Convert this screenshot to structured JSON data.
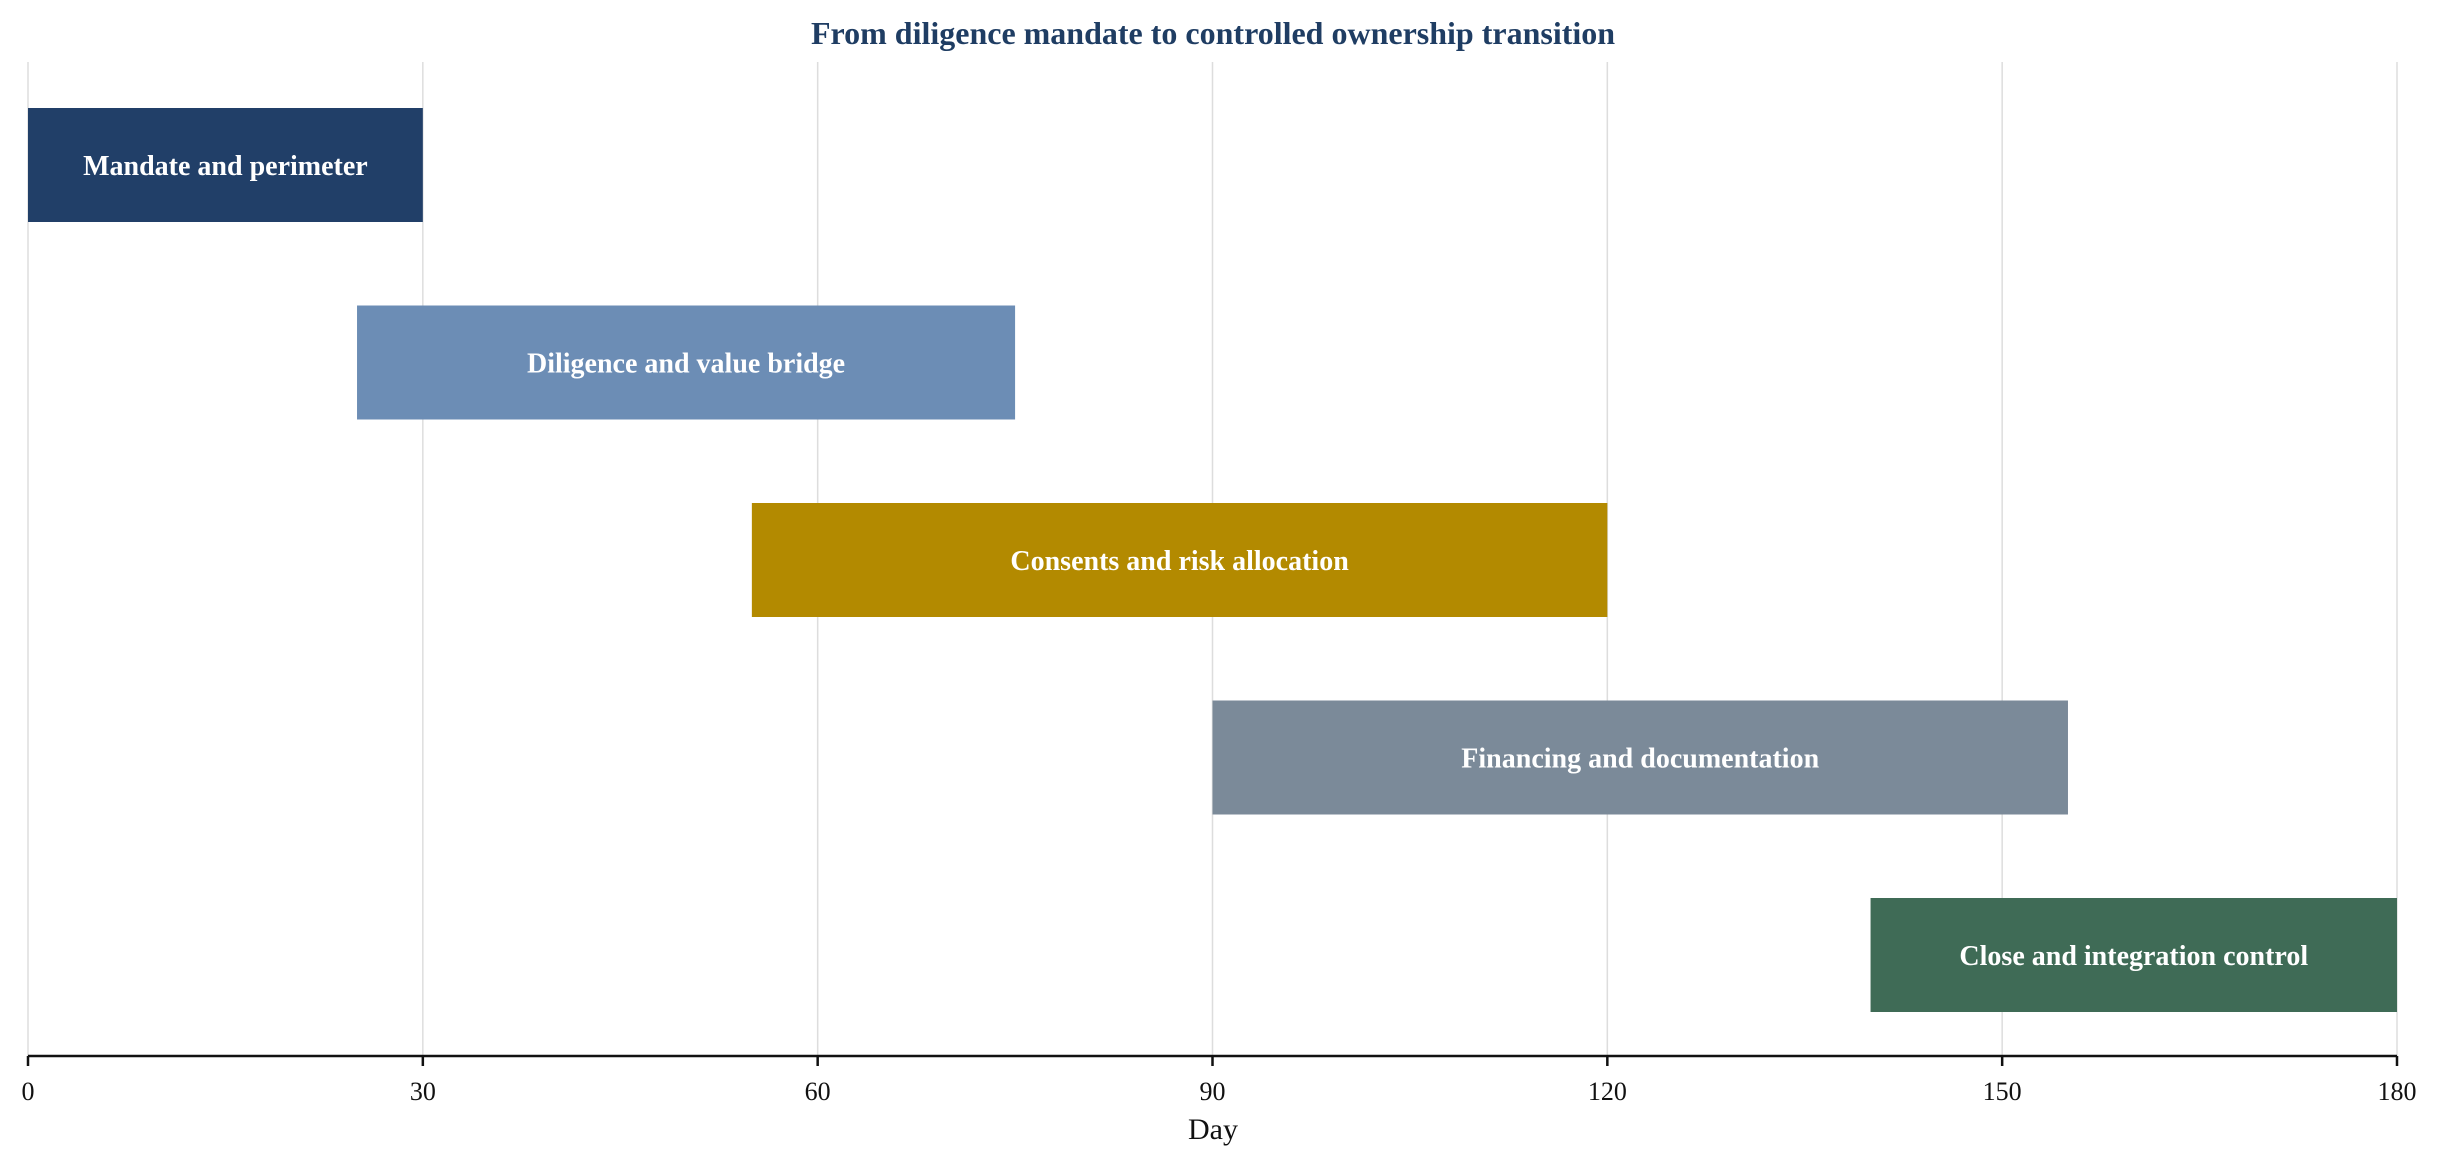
{
  "chart_data": {
    "type": "bar",
    "orientation": "horizontal-gantt",
    "title": "From diligence mandate to controlled ownership transition",
    "xlabel": "Day",
    "ylabel": "",
    "xlim": [
      0,
      180
    ],
    "xticks": [
      0,
      30,
      60,
      90,
      120,
      150,
      180
    ],
    "grid": "vertical",
    "tasks": [
      {
        "label": "Mandate and perimeter",
        "start": 0,
        "end": 30,
        "color": "#213f68"
      },
      {
        "label": "Diligence and value bridge",
        "start": 25,
        "end": 75,
        "color": "#6c8db5"
      },
      {
        "label": "Consents and risk allocation",
        "start": 55,
        "end": 120,
        "color": "#b38a00"
      },
      {
        "label": "Financing and documentation",
        "start": 90,
        "end": 155,
        "color": "#7b8a99"
      },
      {
        "label": "Close and integration control",
        "start": 140,
        "end": 180,
        "color": "#3f6b56"
      }
    ]
  }
}
